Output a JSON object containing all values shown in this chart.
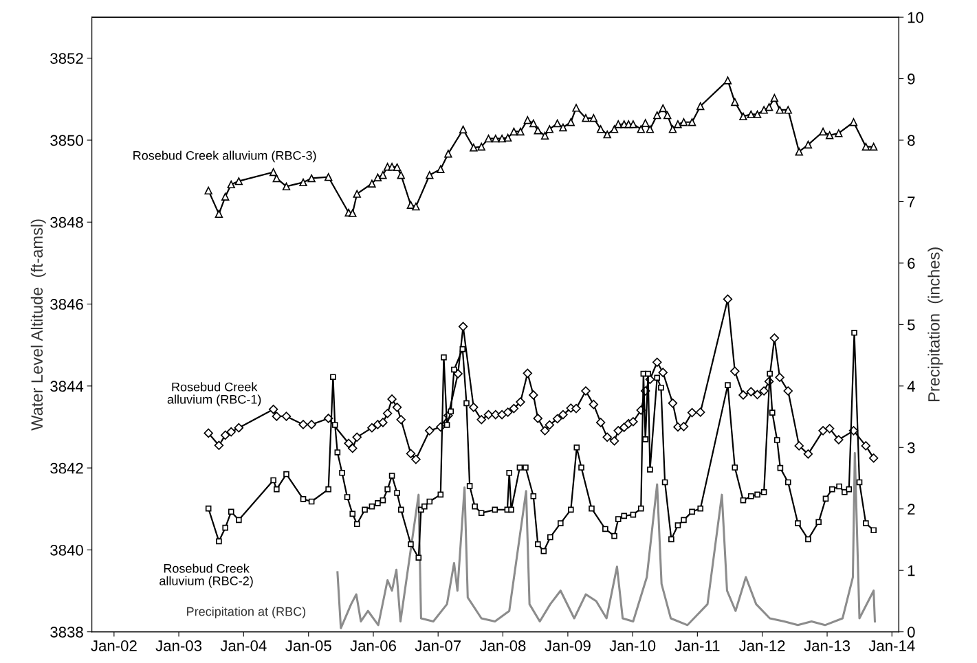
{
  "chart_data": {
    "type": "line",
    "ylabel": "Water Level Altitude  (ft-amsl)",
    "y2label": "Precipitation  (inches)",
    "xlim": [
      "2001-08-29",
      "2014-02-09"
    ],
    "xticks": [
      {
        "value": "2002-01-01",
        "label": "Jan-02"
      },
      {
        "value": "2003-01-01",
        "label": "Jan-03"
      },
      {
        "value": "2004-01-01",
        "label": "Jan-04"
      },
      {
        "value": "2005-01-01",
        "label": "Jan-05"
      },
      {
        "value": "2006-01-01",
        "label": "Jan-06"
      },
      {
        "value": "2007-01-01",
        "label": "Jan-07"
      },
      {
        "value": "2008-01-01",
        "label": "Jan-08"
      },
      {
        "value": "2009-01-01",
        "label": "Jan-09"
      },
      {
        "value": "2010-01-01",
        "label": "Jan-10"
      },
      {
        "value": "2011-01-01",
        "label": "Jan-11"
      },
      {
        "value": "2012-01-01",
        "label": "Jan-12"
      },
      {
        "value": "2013-01-01",
        "label": "Jan-13"
      },
      {
        "value": "2014-01-01",
        "label": "Jan-14"
      }
    ],
    "ylim": [
      3838,
      3853
    ],
    "yticks": [
      3838,
      3840,
      3842,
      3844,
      3846,
      3848,
      3850,
      3852
    ],
    "y2lim": [
      0,
      10
    ],
    "y2ticks": [
      0,
      1,
      2,
      3,
      4,
      5,
      6,
      7,
      8,
      9,
      10
    ],
    "grid": false,
    "legend": false,
    "series": [
      {
        "name": "Rosebud Creek alluvium (RBC-3)",
        "color": "#000000",
        "marker": "triangle",
        "line_style": "solid",
        "x": [
          "2003-06-17",
          "2003-08-15",
          "2003-09-20",
          "2003-10-23",
          "2003-12-05",
          "2004-06-17",
          "2004-07-05",
          "2004-08-29",
          "2004-12-02",
          "2005-01-18",
          "2005-04-23",
          "2005-08-15",
          "2005-09-06",
          "2005-10-01",
          "2005-12-24",
          "2006-01-26",
          "2006-02-24",
          "2006-03-22",
          "2006-04-16",
          "2006-05-15",
          "2006-06-06",
          "2006-07-31",
          "2006-08-29",
          "2006-11-14",
          "2007-01-15",
          "2007-02-27",
          "2007-05-22",
          "2007-07-20",
          "2007-09-02",
          "2007-10-12",
          "2007-11-21",
          "2007-12-27",
          "2008-01-29",
          "2008-03-03",
          "2008-04-09",
          "2008-05-19",
          "2008-06-21",
          "2008-07-16",
          "2008-08-25",
          "2008-09-20",
          "2008-11-03",
          "2008-12-05",
          "2009-01-18",
          "2009-02-17",
          "2009-04-12",
          "2009-05-26",
          "2009-07-05",
          "2009-08-11",
          "2009-09-20",
          "2009-10-12",
          "2009-11-14",
          "2009-12-09",
          "2010-01-04",
          "2010-02-17",
          "2010-03-14",
          "2010-04-09",
          "2010-05-19",
          "2010-06-21",
          "2010-07-16",
          "2010-08-15",
          "2010-09-13",
          "2010-10-16",
          "2010-12-02",
          "2011-01-18",
          "2011-06-21",
          "2011-07-31",
          "2011-09-16",
          "2011-10-30",
          "2011-12-05",
          "2012-01-11",
          "2012-02-09",
          "2012-03-10",
          "2012-04-09",
          "2012-05-26",
          "2012-07-27",
          "2012-09-16",
          "2012-12-09",
          "2013-01-15",
          "2013-03-07",
          "2013-05-30",
          "2013-08-07",
          "2013-09-20"
        ],
        "values": [
          3848.77,
          3848.2,
          3848.62,
          3848.92,
          3849.0,
          3849.22,
          3849.07,
          3848.87,
          3848.97,
          3849.07,
          3849.1,
          3848.23,
          3848.22,
          3848.69,
          3848.94,
          3849.09,
          3849.15,
          3849.35,
          3849.35,
          3849.34,
          3849.15,
          3848.42,
          3848.38,
          3849.15,
          3849.29,
          3849.67,
          3850.26,
          3849.82,
          3849.84,
          3850.04,
          3850.04,
          3850.04,
          3850.06,
          3850.21,
          3850.21,
          3850.49,
          3850.41,
          3850.24,
          3850.11,
          3850.27,
          3850.41,
          3850.31,
          3850.44,
          3850.79,
          3850.54,
          3850.54,
          3850.27,
          3850.14,
          3850.27,
          3850.39,
          3850.39,
          3850.39,
          3850.39,
          3850.27,
          3850.42,
          3850.27,
          3850.61,
          3850.78,
          3850.61,
          3850.27,
          3850.39,
          3850.44,
          3850.44,
          3850.83,
          3851.46,
          3850.93,
          3850.58,
          3850.63,
          3850.63,
          3850.74,
          3850.81,
          3851.03,
          3850.74,
          3850.74,
          3849.72,
          3849.89,
          3850.21,
          3850.12,
          3850.17,
          3850.44,
          3849.84,
          3849.84
        ]
      },
      {
        "name": "Rosebud Creek\nalluvium (RBC-1)",
        "color": "#000000",
        "marker": "diamond",
        "line_style": "solid",
        "x": [
          "2003-06-17",
          "2003-08-15",
          "2003-09-20",
          "2003-10-23",
          "2003-12-05",
          "2004-06-17",
          "2004-07-05",
          "2004-08-29",
          "2004-12-02",
          "2005-01-18",
          "2005-04-23",
          "2005-08-15",
          "2005-09-06",
          "2005-10-01",
          "2005-12-24",
          "2006-01-26",
          "2006-02-24",
          "2006-03-22",
          "2006-04-16",
          "2006-05-15",
          "2006-06-06",
          "2006-07-31",
          "2006-08-29",
          "2006-11-14",
          "2007-01-15",
          "2007-02-27",
          "2007-04-23",
          "2007-05-22",
          "2007-07-20",
          "2007-09-02",
          "2007-10-12",
          "2007-11-21",
          "2007-12-27",
          "2008-01-29",
          "2008-03-03",
          "2008-04-09",
          "2008-05-19",
          "2008-06-21",
          "2008-07-16",
          "2008-08-25",
          "2008-09-20",
          "2008-11-03",
          "2008-12-05",
          "2009-01-18",
          "2009-02-17",
          "2009-04-12",
          "2009-05-26",
          "2009-07-05",
          "2009-08-11",
          "2009-09-20",
          "2009-10-12",
          "2009-11-14",
          "2009-12-09",
          "2010-01-04",
          "2010-02-17",
          "2010-03-14",
          "2010-04-09",
          "2010-05-19",
          "2010-06-21",
          "2010-08-15",
          "2010-09-13",
          "2010-10-16",
          "2010-12-02",
          "2011-01-18",
          "2011-06-21",
          "2011-07-31",
          "2011-09-16",
          "2011-10-30",
          "2011-12-05",
          "2012-01-11",
          "2012-02-09",
          "2012-03-10",
          "2012-04-09",
          "2012-05-26",
          "2012-07-27",
          "2012-09-16",
          "2012-12-09",
          "2013-01-15",
          "2013-03-07",
          "2013-05-30",
          "2013-08-07",
          "2013-09-20"
        ],
        "values": [
          3842.85,
          3842.55,
          3842.8,
          3842.88,
          3842.98,
          3843.43,
          3843.26,
          3843.26,
          3843.06,
          3843.06,
          3843.21,
          3842.6,
          3842.48,
          3842.75,
          3842.98,
          3843.06,
          3843.11,
          3843.33,
          3843.68,
          3843.48,
          3843.18,
          3842.35,
          3842.21,
          3842.91,
          3843.0,
          3843.28,
          3844.3,
          3845.45,
          3843.48,
          3843.18,
          3843.3,
          3843.3,
          3843.3,
          3843.36,
          3843.45,
          3843.61,
          3844.31,
          3843.78,
          3843.21,
          3842.91,
          3843.05,
          3843.2,
          3843.3,
          3843.46,
          3843.45,
          3843.88,
          3843.55,
          3843.11,
          3842.75,
          3842.66,
          3842.91,
          3842.99,
          3843.08,
          3843.13,
          3843.41,
          3843.88,
          3844.16,
          3844.58,
          3844.33,
          3843.58,
          3843.0,
          3843.01,
          3843.35,
          3843.36,
          3846.12,
          3844.36,
          3843.78,
          3843.86,
          3843.79,
          3843.88,
          3844.11,
          3845.17,
          3844.21,
          3843.88,
          3842.54,
          3842.34,
          3842.91,
          3842.96,
          3842.69,
          3842.91,
          3842.54,
          3842.24
        ]
      },
      {
        "name": "Rosebud Creek\nalluvium (RBC-2)",
        "color": "#000000",
        "marker": "square",
        "line_style": "solid",
        "x": [
          "2003-06-17",
          "2003-08-15",
          "2003-09-20",
          "2003-10-23",
          "2003-12-05",
          "2004-06-17",
          "2004-07-05",
          "2004-08-29",
          "2004-12-02",
          "2005-01-18",
          "2005-04-23",
          "2005-05-19",
          "2005-05-30",
          "2005-06-13",
          "2005-07-09",
          "2005-08-07",
          "2005-09-06",
          "2005-10-01",
          "2005-11-14",
          "2005-12-24",
          "2006-01-26",
          "2006-02-24",
          "2006-03-22",
          "2006-04-16",
          "2006-05-15",
          "2006-06-06",
          "2006-07-31",
          "2006-09-13",
          "2006-09-27",
          "2006-10-16",
          "2006-11-14",
          "2007-01-15",
          "2007-02-02",
          "2007-02-20",
          "2007-03-14",
          "2007-04-01",
          "2007-05-19",
          "2007-06-10",
          "2007-06-28",
          "2007-07-27",
          "2007-09-02",
          "2007-11-17",
          "2008-01-26",
          "2008-02-06",
          "2008-02-17",
          "2008-04-05",
          "2008-05-08",
          "2008-06-21",
          "2008-07-16",
          "2008-08-18",
          "2008-09-24",
          "2008-11-21",
          "2009-01-18",
          "2009-02-20",
          "2009-03-18",
          "2009-05-15",
          "2009-07-31",
          "2009-09-20",
          "2009-10-12",
          "2009-11-14",
          "2010-01-04",
          "2010-02-17",
          "2010-03-03",
          "2010-03-14",
          "2010-03-29",
          "2010-04-09",
          "2010-05-19",
          "2010-06-10",
          "2010-07-02",
          "2010-08-07",
          "2010-09-13",
          "2010-10-16",
          "2010-12-02",
          "2011-01-18",
          "2011-06-21",
          "2011-07-31",
          "2011-09-16",
          "2011-10-30",
          "2011-12-05",
          "2012-01-11",
          "2012-02-13",
          "2012-02-27",
          "2012-03-25",
          "2012-04-12",
          "2012-05-26",
          "2012-07-20",
          "2012-09-16",
          "2012-11-14",
          "2012-12-24",
          "2013-01-29",
          "2013-03-10",
          "2013-04-09",
          "2013-05-04",
          "2013-06-03",
          "2013-07-02",
          "2013-08-07",
          "2013-09-20"
        ],
        "values": [
          3841.01,
          3840.21,
          3840.54,
          3840.93,
          3840.73,
          3841.7,
          3841.48,
          3841.85,
          3841.24,
          3841.18,
          3841.48,
          3844.22,
          3843.05,
          3842.38,
          3841.88,
          3841.29,
          3840.88,
          3840.63,
          3840.98,
          3841.06,
          3841.14,
          3841.21,
          3841.48,
          3841.81,
          3841.39,
          3840.98,
          3840.14,
          3839.81,
          3840.98,
          3841.06,
          3841.18,
          3841.35,
          3844.7,
          3843.05,
          3843.38,
          3844.4,
          3844.9,
          3843.58,
          3841.56,
          3841.06,
          3840.9,
          3840.98,
          3840.98,
          3841.88,
          3840.98,
          3842.01,
          3842.01,
          3841.31,
          3840.14,
          3839.97,
          3840.31,
          3840.65,
          3840.98,
          3842.5,
          3842.01,
          3841.01,
          3840.51,
          3840.34,
          3840.75,
          3840.83,
          3840.86,
          3841.01,
          3844.3,
          3842.7,
          3844.3,
          3841.96,
          3844.2,
          3843.96,
          3841.65,
          3840.26,
          3840.6,
          3840.73,
          3840.93,
          3841.01,
          3844.02,
          3842.01,
          3841.21,
          3841.31,
          3841.35,
          3841.41,
          3844.3,
          3843.35,
          3842.68,
          3842.0,
          3841.65,
          3840.65,
          3840.26,
          3840.68,
          3841.25,
          3841.48,
          3841.55,
          3841.41,
          3841.48,
          3845.3,
          3841.65,
          3840.65,
          3840.48
        ]
      },
      {
        "name": "Precipitation at (RBC)",
        "color": "#8c8c8c",
        "marker": "none",
        "line_style": "solid",
        "axis": "y2",
        "x": [
          "2005-06-13",
          "2005-07-02",
          "2005-08-29",
          "2005-09-27",
          "2005-10-23",
          "2005-12-02",
          "2006-01-29",
          "2006-03-22",
          "2006-04-16",
          "2006-05-11",
          "2006-06-03",
          "2006-09-13",
          "2006-09-27",
          "2006-12-05",
          "2007-02-20",
          "2007-04-01",
          "2007-04-20",
          "2007-05-30",
          "2007-06-17",
          "2007-09-02",
          "2007-11-17",
          "2008-02-06",
          "2008-05-11",
          "2008-05-30",
          "2008-07-27",
          "2008-09-24",
          "2008-11-21",
          "2009-02-06",
          "2009-04-12",
          "2009-06-10",
          "2009-08-07",
          "2009-10-05",
          "2009-11-06",
          "2010-01-04",
          "2010-03-22",
          "2010-05-19",
          "2010-06-13",
          "2010-08-04",
          "2010-11-06",
          "2011-02-27",
          "2011-05-19",
          "2011-06-17",
          "2011-08-04",
          "2011-10-01",
          "2011-11-28",
          "2012-02-13",
          "2012-05-04",
          "2012-07-20",
          "2012-10-05",
          "2012-12-20",
          "2013-03-29",
          "2013-05-26",
          "2013-06-06",
          "2013-07-02",
          "2013-09-20",
          "2013-09-27"
        ],
        "values": [
          0.97,
          0.06,
          0.45,
          0.61,
          0.17,
          0.34,
          0.11,
          0.84,
          0.67,
          1.01,
          0.17,
          2.23,
          0.22,
          0.17,
          0.45,
          1.12,
          0.67,
          2.35,
          0.56,
          0.22,
          0.17,
          0.34,
          2.29,
          0.45,
          0.17,
          0.45,
          0.67,
          0.22,
          0.61,
          0.5,
          0.22,
          1.06,
          0.22,
          0.17,
          0.89,
          2.4,
          0.78,
          0.22,
          0.11,
          0.45,
          2.23,
          0.67,
          0.34,
          0.89,
          0.45,
          0.22,
          0.17,
          0.11,
          0.17,
          0.11,
          0.22,
          0.89,
          2.91,
          0.22,
          0.67,
          0.17
        ]
      }
    ]
  }
}
